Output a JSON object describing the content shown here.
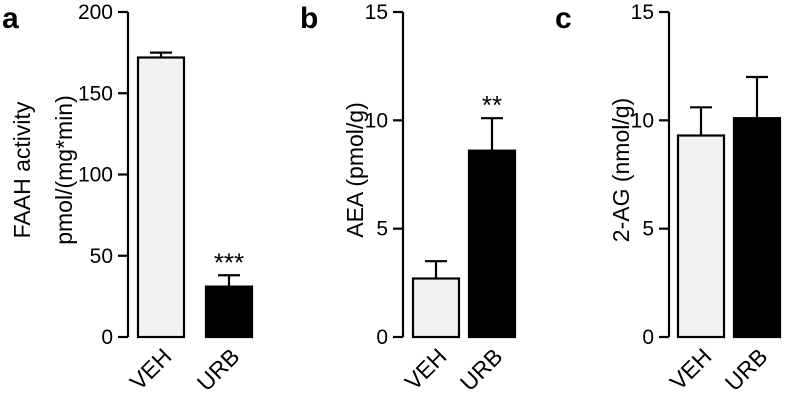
{
  "chart_data": [
    {
      "panel": "a",
      "type": "bar",
      "categories": [
        "VEH",
        "URB"
      ],
      "values": [
        172,
        31
      ],
      "errors": [
        3,
        7
      ],
      "significance": [
        "",
        "***"
      ],
      "bar_colors": [
        "#f2f2f2",
        "#000000"
      ],
      "ylabel_lines": [
        "FAAH activity",
        "pmol/(mg*min)"
      ],
      "ylim": [
        0,
        200
      ],
      "yticks": [
        0,
        50,
        100,
        150,
        200
      ],
      "ytick_labels": [
        "0",
        "50",
        "100",
        "150",
        "200"
      ],
      "grid": false
    },
    {
      "panel": "b",
      "type": "bar",
      "categories": [
        "VEH",
        "URB"
      ],
      "values": [
        2.7,
        8.6
      ],
      "errors": [
        0.8,
        1.5
      ],
      "significance": [
        "",
        "**"
      ],
      "bar_colors": [
        "#f2f2f2",
        "#000000"
      ],
      "ylabel_lines": [
        "AEA (pmol/g)"
      ],
      "ylim": [
        0,
        15
      ],
      "yticks": [
        0,
        5,
        10,
        15
      ],
      "ytick_labels": [
        "0",
        "5",
        "10",
        "15"
      ],
      "grid": false
    },
    {
      "panel": "c",
      "type": "bar",
      "categories": [
        "VEH",
        "URB"
      ],
      "values": [
        9.3,
        10.1
      ],
      "errors": [
        1.3,
        1.9
      ],
      "significance": [
        "",
        ""
      ],
      "bar_colors": [
        "#f2f2f2",
        "#000000"
      ],
      "ylabel_lines": [
        "2-AG (nmol/g)"
      ],
      "ylim": [
        0,
        15
      ],
      "yticks": [
        0,
        5,
        10,
        15
      ],
      "ytick_labels": [
        "0",
        "5",
        "10",
        "15"
      ],
      "grid": false
    }
  ]
}
